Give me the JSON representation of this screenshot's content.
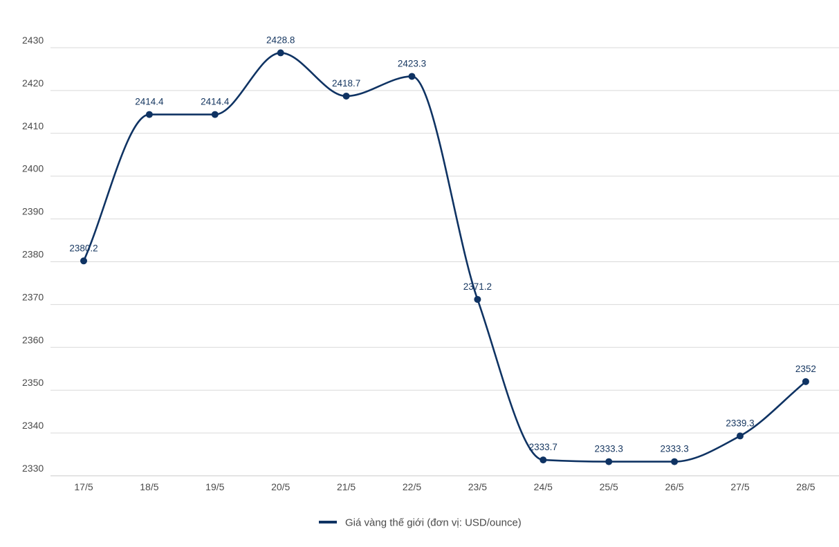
{
  "colors": {
    "series": "#0f3363",
    "grid": "#d9d9d9",
    "axis": "#c8c8c8",
    "tick_text": "#4a4a4a",
    "label_text": "#14355f"
  },
  "chart_data": {
    "type": "line",
    "smooth": true,
    "categories": [
      "17/5",
      "18/5",
      "19/5",
      "20/5",
      "21/5",
      "22/5",
      "23/5",
      "24/5",
      "25/5",
      "26/5",
      "27/5",
      "28/5"
    ],
    "series": [
      {
        "name": "Giá vàng thế giới (đơn vị: USD/ounce)",
        "values": [
          2380.2,
          2414.4,
          2414.4,
          2428.8,
          2418.7,
          2423.3,
          2371.2,
          2333.7,
          2333.3,
          2333.3,
          2339.3,
          2352
        ],
        "labels": [
          "2380.2",
          "2414.4",
          "2414.4",
          "2428.8",
          "2418.7",
          "2423.3",
          "2371.2",
          "2333.7",
          "2333.3",
          "2333.3",
          "2339.3",
          "2352"
        ]
      }
    ],
    "y_ticks": [
      "2330",
      "2340",
      "2350",
      "2360",
      "2370",
      "2380",
      "2390",
      "2400",
      "2410",
      "2420",
      "2430"
    ],
    "ylim": [
      2330,
      2430
    ],
    "grid": true,
    "legend_position": "bottom-center"
  }
}
